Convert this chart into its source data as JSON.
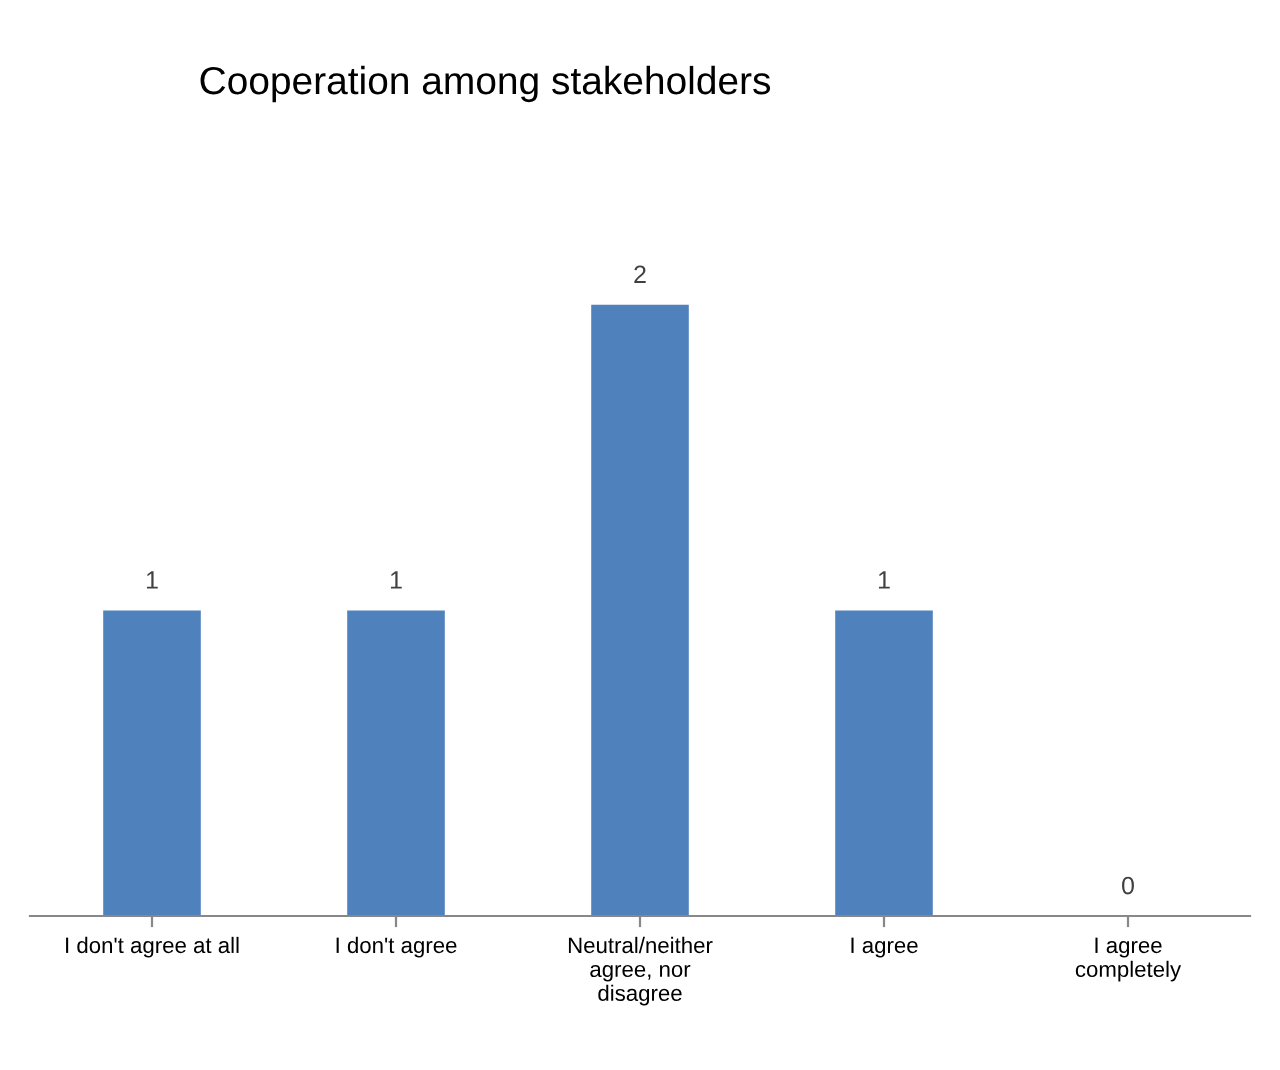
{
  "chart_data": {
    "type": "bar",
    "title": "Cooperation among stakeholders",
    "categories": [
      "I don't agree at all",
      "I don't agree",
      "Neutral/neither\nagree, nor\ndisagree",
      "I agree",
      "I agree\ncompletely"
    ],
    "values": [
      1,
      1,
      2,
      1,
      0
    ],
    "color": "#4f81bd",
    "data_labels": true
  }
}
